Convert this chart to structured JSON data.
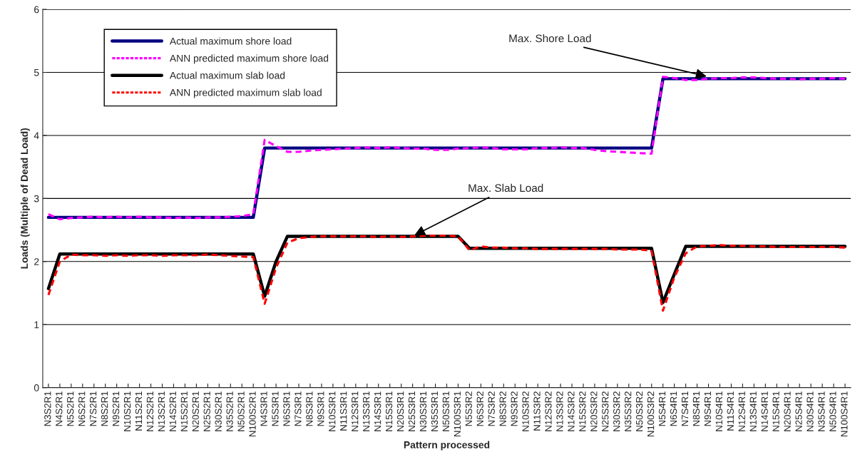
{
  "chart_data": {
    "type": "line",
    "xlabel": "Pattern processed",
    "ylabel": "Loads (Multiple of Dead Load)",
    "categories": [
      "N3S2R1",
      "N4S2R1",
      "N5S2R1",
      "N6S2R1",
      "N7S2R1",
      "N8S2R1",
      "N9S2R1",
      "N10S2R1",
      "N11S2R1",
      "N12S2R1",
      "N13S2R1",
      "N14S2R1",
      "N15S2R1",
      "N20S2R1",
      "N25S2R1",
      "N30S2R1",
      "N35S2R1",
      "N50S2R1",
      "N100S2R1",
      "N4S3R1",
      "N5S3R1",
      "N6S3R1",
      "N7S3R1",
      "N8S3R1",
      "N9S3R1",
      "N10S3R1",
      "N11S3R1",
      "N12S3R1",
      "N13S3R1",
      "N14S3R1",
      "N15S3R1",
      "N20S3R1",
      "N25S3R1",
      "N30S3R1",
      "N35S3R1",
      "N50S3R1",
      "N100S3R1",
      "N5S3R2",
      "N6S3R2",
      "N7S3R2",
      "N8S3R2",
      "N9S3R2",
      "N10S3R2",
      "N11S3R2",
      "N12S3R2",
      "N13S3R2",
      "N14S3R2",
      "N15S3R2",
      "N20S3R2",
      "N25S3R2",
      "N30S3R2",
      "N35S3R2",
      "N50S3R2",
      "N100S3R2",
      "N5S4R1",
      "N6S4R1",
      "N7S4R1",
      "N8S4R1",
      "N9S4R1",
      "N10S4R1",
      "N11S4R1",
      "N12S4R1",
      "N13S4R1",
      "N14S4R1",
      "N15S4R1",
      "N20S4R1",
      "N25S4R1",
      "N30S4R1",
      "N35S4R1",
      "N50S4R1",
      "N100S4R1"
    ],
    "series": [
      {
        "name": "Actual maximum shore load",
        "color": "#000080",
        "line_style": "solid",
        "values": [
          2.7,
          2.7,
          2.7,
          2.7,
          2.7,
          2.7,
          2.7,
          2.7,
          2.7,
          2.7,
          2.7,
          2.7,
          2.7,
          2.7,
          2.7,
          2.7,
          2.7,
          2.7,
          2.7,
          3.8,
          3.8,
          3.8,
          3.8,
          3.8,
          3.8,
          3.8,
          3.8,
          3.8,
          3.8,
          3.8,
          3.8,
          3.8,
          3.8,
          3.8,
          3.8,
          3.8,
          3.8,
          3.8,
          3.8,
          3.8,
          3.8,
          3.8,
          3.8,
          3.8,
          3.8,
          3.8,
          3.8,
          3.8,
          3.8,
          3.8,
          3.8,
          3.8,
          3.8,
          3.8,
          4.9,
          4.9,
          4.9,
          4.9,
          4.9,
          4.9,
          4.9,
          4.9,
          4.9,
          4.9,
          4.9,
          4.9,
          4.9,
          4.9,
          4.9,
          4.9,
          4.9
        ]
      },
      {
        "name": "ANN predicted maximum shore load",
        "color": "#ff00ff",
        "line_style": "dashed",
        "values": [
          2.75,
          2.67,
          2.69,
          2.7,
          2.71,
          2.7,
          2.71,
          2.7,
          2.71,
          2.7,
          2.7,
          2.69,
          2.7,
          2.69,
          2.7,
          2.7,
          2.71,
          2.72,
          2.75,
          3.93,
          3.83,
          3.74,
          3.74,
          3.76,
          3.77,
          3.78,
          3.79,
          3.8,
          3.81,
          3.8,
          3.81,
          3.8,
          3.79,
          3.79,
          3.77,
          3.77,
          3.79,
          3.8,
          3.81,
          3.8,
          3.78,
          3.78,
          3.78,
          3.8,
          3.8,
          3.81,
          3.8,
          3.8,
          3.77,
          3.75,
          3.74,
          3.73,
          3.72,
          3.71,
          4.93,
          4.91,
          4.88,
          4.88,
          4.9,
          4.91,
          4.91,
          4.92,
          4.92,
          4.91,
          4.9,
          4.9,
          4.89,
          4.9,
          4.9,
          4.91,
          4.9
        ]
      },
      {
        "name": "Actual maximum slab load",
        "color": "#000000",
        "line_style": "solid",
        "values": [
          1.57,
          2.12,
          2.12,
          2.12,
          2.12,
          2.12,
          2.12,
          2.12,
          2.12,
          2.12,
          2.12,
          2.12,
          2.12,
          2.12,
          2.12,
          2.12,
          2.12,
          2.12,
          2.12,
          1.45,
          2.0,
          2.4,
          2.4,
          2.4,
          2.4,
          2.4,
          2.4,
          2.4,
          2.4,
          2.4,
          2.4,
          2.4,
          2.4,
          2.4,
          2.4,
          2.4,
          2.4,
          2.21,
          2.21,
          2.21,
          2.21,
          2.21,
          2.21,
          2.21,
          2.21,
          2.21,
          2.21,
          2.21,
          2.21,
          2.21,
          2.21,
          2.21,
          2.21,
          2.21,
          1.35,
          1.8,
          2.24,
          2.24,
          2.24,
          2.24,
          2.24,
          2.24,
          2.24,
          2.24,
          2.24,
          2.24,
          2.24,
          2.24,
          2.24,
          2.24,
          2.24
        ]
      },
      {
        "name": "ANN predicted maximum slab load",
        "color": "#ff0000",
        "line_style": "dashed",
        "values": [
          1.47,
          2.0,
          2.11,
          2.1,
          2.1,
          2.09,
          2.1,
          2.09,
          2.1,
          2.1,
          2.09,
          2.1,
          2.1,
          2.1,
          2.11,
          2.1,
          2.09,
          2.08,
          2.07,
          1.33,
          1.9,
          2.3,
          2.37,
          2.39,
          2.4,
          2.4,
          2.4,
          2.4,
          2.4,
          2.39,
          2.4,
          2.39,
          2.4,
          2.41,
          2.41,
          2.41,
          2.4,
          2.18,
          2.24,
          2.22,
          2.22,
          2.21,
          2.21,
          2.2,
          2.2,
          2.2,
          2.2,
          2.2,
          2.2,
          2.2,
          2.19,
          2.19,
          2.19,
          2.17,
          1.22,
          1.75,
          2.13,
          2.24,
          2.25,
          2.26,
          2.25,
          2.25,
          2.24,
          2.24,
          2.23,
          2.23,
          2.23,
          2.23,
          2.23,
          2.23,
          2.22
        ]
      }
    ],
    "ylim": [
      0,
      6
    ],
    "yticks": [
      0,
      1,
      2,
      3,
      4,
      5,
      6
    ],
    "grid": "y",
    "legend": "top left",
    "marker": "none",
    "annotations": [
      {
        "text": "Max. Shore Load",
        "x": "N9S4R1",
        "y": 4.93
      },
      {
        "text": "Max. Slab Load",
        "x": "N25S3R1",
        "y": 2.4
      }
    ]
  }
}
